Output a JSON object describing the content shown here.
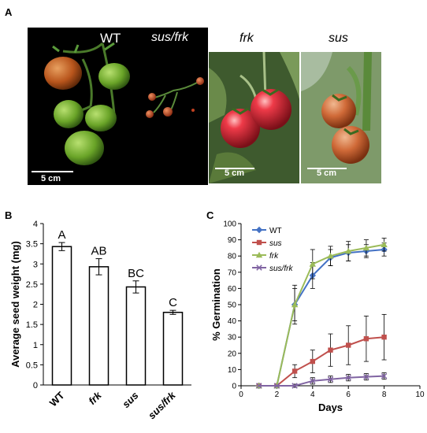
{
  "panels": {
    "a": "A",
    "b": "B",
    "c": "C"
  },
  "photo_left": {
    "label_wt": "WT",
    "label_susfrk": "sus/frk",
    "scale": "5 cm"
  },
  "photo_frk": {
    "label": "frk",
    "scale": "5 cm"
  },
  "photo_sus": {
    "label": "sus",
    "scale": "5 cm"
  },
  "chart_data": [
    {
      "type": "bar",
      "ylabel": "Average seed weight (mg)",
      "categories": [
        "WT",
        "frk",
        "sus",
        "sus/frk"
      ],
      "values": [
        3.43,
        2.93,
        2.43,
        1.8
      ],
      "errors": [
        0.1,
        0.2,
        0.15,
        0.05
      ],
      "letters": [
        "A",
        "AB",
        "BC",
        "C"
      ],
      "ylim": [
        0,
        4
      ],
      "yticks": [
        "0",
        "0.5",
        "1",
        "1.5",
        "2",
        "2.5",
        "3",
        "3.5",
        "4"
      ],
      "colors": {
        "bar_fill": "#ffffff",
        "bar_stroke": "#000000"
      }
    },
    {
      "type": "line",
      "xlabel": "Days",
      "ylabel": "% Germination",
      "xlim": [
        0,
        10
      ],
      "ylim": [
        0,
        100
      ],
      "xticks": [
        "0",
        "2",
        "4",
        "6",
        "8",
        "10"
      ],
      "yticks": [
        "0",
        "10",
        "20",
        "30",
        "40",
        "50",
        "60",
        "70",
        "80",
        "90",
        "100"
      ],
      "x": [
        1,
        2,
        3,
        4,
        5,
        6,
        7,
        8
      ],
      "series": [
        {
          "name": "WT",
          "color": "#4472c4",
          "marker": "diamond",
          "values": [
            0,
            0,
            50,
            68,
            79,
            82,
            83,
            84
          ],
          "errors": [
            0,
            0,
            10,
            8,
            5,
            5,
            4,
            4
          ]
        },
        {
          "name": "sus",
          "color": "#c0504d",
          "marker": "square",
          "values": [
            0,
            0,
            9,
            15,
            22,
            25,
            29,
            30
          ],
          "errors": [
            0,
            0,
            4,
            7,
            10,
            12,
            14,
            14
          ]
        },
        {
          "name": "frk",
          "color": "#9bbb59",
          "marker": "triangle",
          "values": [
            0,
            0,
            50,
            75,
            80,
            83,
            85,
            87
          ],
          "errors": [
            0,
            0,
            12,
            9,
            6,
            6,
            5,
            4
          ]
        },
        {
          "name": "sus/frk",
          "color": "#8064a2",
          "marker": "x",
          "values": [
            0,
            0,
            0,
            3,
            4,
            5,
            5.5,
            6
          ],
          "errors": [
            0,
            0,
            1,
            2,
            2,
            2,
            2,
            2
          ]
        }
      ],
      "legend_position": "top-left"
    }
  ]
}
